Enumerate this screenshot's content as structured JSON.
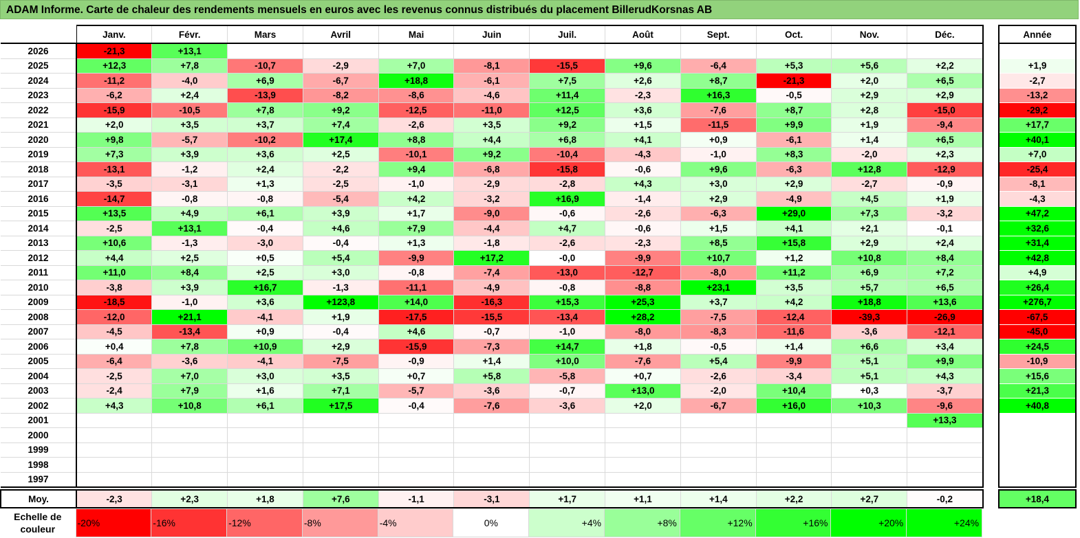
{
  "title": "ADAM Informe. Carte de chaleur des rendements mensuels en euros avec les revenus connus distribués du placement BillerudKorsnas AB",
  "chart_data": {
    "type": "heatmap",
    "months": [
      "Janv.",
      "Févr.",
      "Mars",
      "Avril",
      "Mai",
      "Juin",
      "Juil.",
      "Août",
      "Sept.",
      "Oct.",
      "Nov.",
      "Déc."
    ],
    "annual_header": "Année",
    "rows": [
      {
        "year": "2026",
        "values": [
          "-21,3",
          "+13,1",
          "",
          "",
          "",
          "",
          "",
          "",
          "",
          "",
          "",
          ""
        ],
        "annual": ""
      },
      {
        "year": "2025",
        "values": [
          "+12,3",
          "+7,8",
          "-10,7",
          "-2,9",
          "+7,0",
          "-8,1",
          "-15,5",
          "+9,6",
          "-6,4",
          "+5,3",
          "+5,6",
          "+2,2"
        ],
        "annual": "+1,9"
      },
      {
        "year": "2024",
        "values": [
          "-11,2",
          "-4,0",
          "+6,9",
          "-6,7",
          "+18,8",
          "-6,1",
          "+7,5",
          "+2,6",
          "+8,7",
          "-21,3",
          "+2,0",
          "+6,5"
        ],
        "annual": "-2,7"
      },
      {
        "year": "2023",
        "values": [
          "-6,2",
          "+2,4",
          "-13,9",
          "-8,2",
          "-8,6",
          "-4,6",
          "+11,4",
          "-2,3",
          "+16,3",
          "-0,5",
          "+2,9",
          "+2,9"
        ],
        "annual": "-13,2"
      },
      {
        "year": "2022",
        "values": [
          "-15,9",
          "-10,5",
          "+7,8",
          "+9,2",
          "-12,5",
          "-11,0",
          "+12,5",
          "+3,6",
          "-7,6",
          "+8,7",
          "+2,8",
          "-15,0"
        ],
        "annual": "-29,2"
      },
      {
        "year": "2021",
        "values": [
          "+2,0",
          "+3,5",
          "+3,7",
          "+7,4",
          "-2,6",
          "+3,5",
          "+9,2",
          "+1,5",
          "-11,5",
          "+9,9",
          "+1,9",
          "-9,4"
        ],
        "annual": "+17,7"
      },
      {
        "year": "2020",
        "values": [
          "+9,8",
          "-5,7",
          "-10,2",
          "+17,4",
          "+8,8",
          "+4,4",
          "+6,8",
          "+4,1",
          "+0,9",
          "-6,1",
          "+1,4",
          "+6,5"
        ],
        "annual": "+40,1"
      },
      {
        "year": "2019",
        "values": [
          "+7,3",
          "+3,9",
          "+3,6",
          "+2,5",
          "-10,1",
          "+9,2",
          "-10,4",
          "-4,3",
          "-1,0",
          "+8,3",
          "-2,0",
          "+2,3"
        ],
        "annual": "+7,0"
      },
      {
        "year": "2018",
        "values": [
          "-13,1",
          "-1,2",
          "+2,4",
          "-2,2",
          "+9,4",
          "-6,8",
          "-15,8",
          "-0,6",
          "+9,6",
          "-6,3",
          "+12,8",
          "-12,9"
        ],
        "annual": "-25,4"
      },
      {
        "year": "2017",
        "values": [
          "-3,5",
          "-3,1",
          "+1,3",
          "-2,5",
          "-1,0",
          "-2,9",
          "-2,8",
          "+4,3",
          "+3,0",
          "+2,9",
          "-2,7",
          "-0,9"
        ],
        "annual": "-8,1"
      },
      {
        "year": "2016",
        "values": [
          "-14,7",
          "-0,8",
          "-0,8",
          "-5,4",
          "+4,2",
          "-3,2",
          "+16,9",
          "-1,4",
          "+2,9",
          "-4,9",
          "+4,5",
          "+1,9"
        ],
        "annual": "-4,3"
      },
      {
        "year": "2015",
        "values": [
          "+13,5",
          "+4,9",
          "+6,1",
          "+3,9",
          "+1,7",
          "-9,0",
          "-0,6",
          "-2,6",
          "-6,3",
          "+29,0",
          "+7,3",
          "-3,2"
        ],
        "annual": "+47,2"
      },
      {
        "year": "2014",
        "values": [
          "-2,5",
          "+13,1",
          "-0,4",
          "+4,6",
          "+7,9",
          "-4,4",
          "+4,7",
          "-0,6",
          "+1,5",
          "+4,1",
          "+2,1",
          "-0,1"
        ],
        "annual": "+32,6"
      },
      {
        "year": "2013",
        "values": [
          "+10,6",
          "-1,3",
          "-3,0",
          "-0,4",
          "+1,3",
          "-1,8",
          "-2,6",
          "-2,3",
          "+8,5",
          "+15,8",
          "+2,9",
          "+2,4"
        ],
        "annual": "+31,4"
      },
      {
        "year": "2012",
        "values": [
          "+4,4",
          "+2,5",
          "+0,5",
          "+5,4",
          "-9,9",
          "+17,2",
          "-0,0",
          "-9,9",
          "+10,7",
          "+1,2",
          "+10,8",
          "+8,4"
        ],
        "annual": "+42,8"
      },
      {
        "year": "2011",
        "values": [
          "+11,0",
          "+8,4",
          "+2,5",
          "+3,0",
          "-0,8",
          "-7,4",
          "-13,0",
          "-12,7",
          "-8,0",
          "+11,2",
          "+6,9",
          "+7,2"
        ],
        "annual": "+4,9"
      },
      {
        "year": "2010",
        "values": [
          "-3,8",
          "+3,9",
          "+16,7",
          "-1,3",
          "-11,1",
          "-4,9",
          "-0,8",
          "-8,8",
          "+23,1",
          "+3,5",
          "+5,7",
          "+6,5"
        ],
        "annual": "+26,4"
      },
      {
        "year": "2009",
        "values": [
          "-18,5",
          "-1,0",
          "+3,6",
          "+123,8",
          "+14,0",
          "-16,3",
          "+15,3",
          "+25,3",
          "+3,7",
          "+4,2",
          "+18,8",
          "+13,6"
        ],
        "annual": "+276,7"
      },
      {
        "year": "2008",
        "values": [
          "-12,0",
          "+21,1",
          "-4,1",
          "+1,9",
          "-17,5",
          "-15,5",
          "-13,4",
          "+28,2",
          "-7,5",
          "-12,4",
          "-39,3",
          "-26,9"
        ],
        "annual": "-67,5"
      },
      {
        "year": "2007",
        "values": [
          "-4,5",
          "-13,4",
          "+0,9",
          "-0,4",
          "+4,6",
          "-0,7",
          "-1,0",
          "-8,0",
          "-8,3",
          "-11,6",
          "-3,6",
          "-12,1"
        ],
        "annual": "-45,0"
      },
      {
        "year": "2006",
        "values": [
          "+0,4",
          "+7,8",
          "+10,9",
          "+2,9",
          "-15,9",
          "-7,3",
          "+14,7",
          "+1,8",
          "-0,5",
          "+1,4",
          "+6,6",
          "+3,4"
        ],
        "annual": "+24,5"
      },
      {
        "year": "2005",
        "values": [
          "-6,4",
          "-3,6",
          "-4,1",
          "-7,5",
          "-0,9",
          "+1,4",
          "+10,0",
          "-7,6",
          "+5,4",
          "-9,9",
          "+5,1",
          "+9,9"
        ],
        "annual": "-10,9"
      },
      {
        "year": "2004",
        "values": [
          "-2,5",
          "+7,0",
          "+3,0",
          "+3,5",
          "+0,7",
          "+5,8",
          "-5,8",
          "+0,7",
          "-2,6",
          "-3,4",
          "+5,1",
          "+4,3"
        ],
        "annual": "+15,6"
      },
      {
        "year": "2003",
        "values": [
          "-2,4",
          "+7,9",
          "+1,6",
          "+7,1",
          "-5,7",
          "-3,6",
          "-0,7",
          "+13,0",
          "-2,0",
          "+10,4",
          "+0,3",
          "-3,7"
        ],
        "annual": "+21,3"
      },
      {
        "year": "2002",
        "values": [
          "+4,3",
          "+10,8",
          "+6,1",
          "+17,5",
          "-0,4",
          "-7,6",
          "-3,6",
          "+2,0",
          "-6,7",
          "+16,0",
          "+10,3",
          "-9,6"
        ],
        "annual": "+40,8"
      },
      {
        "year": "2001",
        "values": [
          "",
          "",
          "",
          "",
          "",
          "",
          "",
          "",
          "",
          "",
          "",
          "+13,3"
        ],
        "annual": ""
      },
      {
        "year": "2000",
        "values": [
          "",
          "",
          "",
          "",
          "",
          "",
          "",
          "",
          "",
          "",
          "",
          ""
        ],
        "annual": ""
      },
      {
        "year": "1999",
        "values": [
          "",
          "",
          "",
          "",
          "",
          "",
          "",
          "",
          "",
          "",
          "",
          ""
        ],
        "annual": ""
      },
      {
        "year": "1998",
        "values": [
          "",
          "",
          "",
          "",
          "",
          "",
          "",
          "",
          "",
          "",
          "",
          ""
        ],
        "annual": ""
      },
      {
        "year": "1997",
        "values": [
          "",
          "",
          "",
          "",
          "",
          "",
          "",
          "",
          "",
          "",
          "",
          ""
        ],
        "annual": ""
      }
    ],
    "average": {
      "label": "Moy.",
      "values": [
        "-2,3",
        "+2,3",
        "+1,8",
        "+7,6",
        "-1,1",
        "-3,1",
        "+1,7",
        "+1,1",
        "+1,4",
        "+2,2",
        "+2,7",
        "-0,2"
      ],
      "annual": "+18,4"
    },
    "color_scale": {
      "label": "Echelle de couleur",
      "steps": [
        "-20%",
        "-16%",
        "-12%",
        "-8%",
        "-4%",
        "0%",
        "+4%",
        "+8%",
        "+12%",
        "+16%",
        "+20%",
        "+24%"
      ],
      "colors": [
        "#ff0000",
        "#ff3333",
        "#ff6666",
        "#ff9999",
        "#ffcccc",
        "#ffffff",
        "#ccffcc",
        "#99ff99",
        "#66ff66",
        "#33ff33",
        "#00ff00",
        "#00ff00"
      ]
    },
    "colors": {
      "negative": "#ff0000",
      "neutral": "#ffffff",
      "positive": "#00ff00",
      "title_bar": "#92d27c"
    }
  }
}
